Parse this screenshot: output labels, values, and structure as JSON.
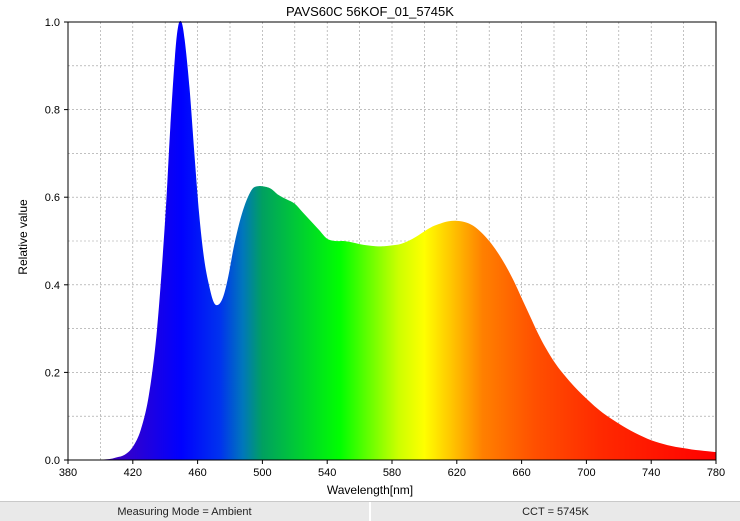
{
  "chart_data": {
    "type": "area",
    "title": "PAVS60C 56KOF_01_5745K",
    "xlabel": "Wavelength[nm]",
    "ylabel": "Relative value",
    "xlim": [
      380,
      780
    ],
    "ylim": [
      0,
      1.0
    ],
    "xticks": [
      "380",
      "420",
      "460",
      "500",
      "540",
      "580",
      "620",
      "660",
      "700",
      "740",
      "780"
    ],
    "yticks": [
      "0.0",
      "0.2",
      "0.4",
      "0.6",
      "0.8",
      "1.0"
    ],
    "grid": true,
    "fill": "visible-spectrum gradient",
    "series": [
      {
        "x": [
          380,
          395,
          405,
          410,
          415,
          420,
          425,
          430,
          435,
          440,
          443,
          446,
          448,
          450,
          452,
          455,
          458,
          461,
          464,
          467,
          470,
          473,
          476,
          479,
          482,
          485,
          488,
          491,
          494,
          497,
          500,
          505,
          510,
          515,
          520,
          525,
          530,
          535,
          540,
          545,
          550,
          555,
          560,
          565,
          570,
          575,
          580,
          585,
          590,
          595,
          600,
          605,
          610,
          615,
          620,
          625,
          630,
          635,
          640,
          645,
          650,
          655,
          660,
          665,
          670,
          675,
          680,
          685,
          690,
          695,
          700,
          705,
          710,
          715,
          720,
          725,
          730,
          735,
          740,
          745,
          750,
          755,
          760,
          765,
          770,
          775,
          780
        ],
        "y": [
          0.0,
          0.0,
          0.002,
          0.006,
          0.012,
          0.03,
          0.07,
          0.15,
          0.3,
          0.55,
          0.75,
          0.92,
          0.99,
          1.0,
          0.96,
          0.85,
          0.7,
          0.56,
          0.46,
          0.4,
          0.36,
          0.355,
          0.375,
          0.42,
          0.48,
          0.53,
          0.57,
          0.6,
          0.62,
          0.625,
          0.625,
          0.62,
          0.605,
          0.595,
          0.585,
          0.565,
          0.545,
          0.525,
          0.505,
          0.5,
          0.5,
          0.497,
          0.493,
          0.49,
          0.488,
          0.488,
          0.49,
          0.493,
          0.5,
          0.51,
          0.522,
          0.533,
          0.54,
          0.545,
          0.546,
          0.543,
          0.535,
          0.52,
          0.5,
          0.475,
          0.445,
          0.41,
          0.37,
          0.33,
          0.29,
          0.255,
          0.225,
          0.2,
          0.178,
          0.158,
          0.14,
          0.123,
          0.108,
          0.095,
          0.083,
          0.072,
          0.062,
          0.053,
          0.045,
          0.039,
          0.034,
          0.03,
          0.027,
          0.024,
          0.022,
          0.02,
          0.018
        ]
      }
    ]
  },
  "status": {
    "measuring_mode": "Measuring Mode = Ambient",
    "cct": "CCT = 5745K"
  }
}
